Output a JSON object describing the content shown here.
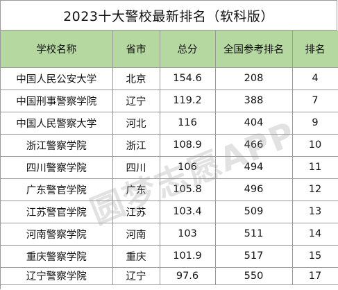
{
  "title": "2023十大警校最新排名（软科版）",
  "headers": [
    "学校名称",
    "省市",
    "总分",
    "全国参考排名",
    "排名"
  ],
  "rows": [
    [
      "中国人民公安大学",
      "北京",
      "154.6",
      "208",
      "4"
    ],
    [
      "中国刑事警察学院",
      "辽宁",
      "119.2",
      "388",
      "7"
    ],
    [
      "中国人民警察大学",
      "河北",
      "116",
      "404",
      "9"
    ],
    [
      "浙江警察学院",
      "浙江",
      "108.9",
      "466",
      "10"
    ],
    [
      "四川警察学院",
      "四川",
      "106",
      "494",
      "11"
    ],
    [
      "广东警官学院",
      "广东",
      "105.8",
      "496",
      "12"
    ],
    [
      "江苏警官学院",
      "江苏",
      "103.4",
      "509",
      "13"
    ],
    [
      "河南警察学院",
      "河南",
      "103",
      "511",
      "14"
    ],
    [
      "重庆警察学院",
      "重庆",
      "101.9",
      "517",
      "15"
    ],
    [
      "辽宁警察学院",
      "辽宁",
      "97.6",
      "550",
      "17"
    ]
  ],
  "watermark": "圆梦志愿APP",
  "colors": {
    "header_bg": "#b5d7a0",
    "border": "#9a9a9a"
  }
}
